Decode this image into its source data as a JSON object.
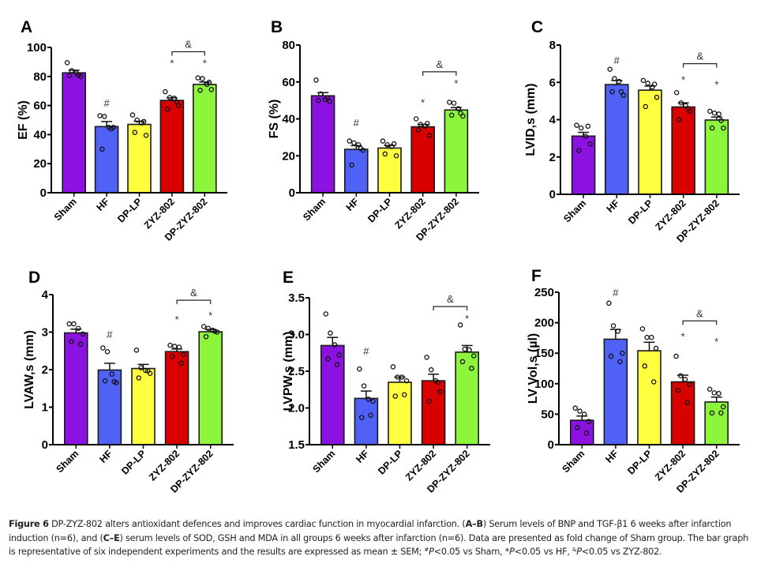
{
  "chart_data": [
    {
      "type": "bar",
      "panel": "A",
      "title": "",
      "xlabel": "",
      "ylabel": "EF (%)",
      "ylim": [
        0,
        100
      ],
      "yticks": [
        0,
        20,
        40,
        60,
        80,
        100
      ],
      "ytick_labels": [
        "0",
        "20",
        "40",
        "60",
        "80",
        "100"
      ],
      "categories": [
        "Sham",
        "HF",
        "DP-LP",
        "ZYZ-802",
        "DP-ZYZ-802"
      ],
      "colors": [
        "#8b12e0",
        "#5062f6",
        "#ffff40",
        "#d90000",
        "#8cf53c"
      ],
      "values": [
        82.5,
        45.5,
        47,
        63.5,
        74.5
      ],
      "sem": [
        1.8,
        3.5,
        2.2,
        1.8,
        1.7
      ],
      "points": [
        [
          89.5,
          84,
          82.5,
          80,
          80.5,
          81
        ],
        [
          53,
          52.5,
          45,
          45,
          30,
          44
        ],
        [
          53.5,
          50,
          48,
          39.5,
          41.5,
          49
        ],
        [
          69.5,
          65.5,
          65,
          60,
          57.5,
          62.5
        ],
        [
          79,
          78.5,
          74.5,
          71,
          70.5,
          76
        ]
      ],
      "annotations": [
        {
          "label": "#",
          "category": "HF",
          "value": 62
        },
        {
          "label": "*",
          "category": "ZYZ-802",
          "value": 89.5
        },
        {
          "label": "*",
          "category": "DP-ZYZ-802",
          "value": 89.5
        }
      ],
      "bracket": {
        "from": "ZYZ-802",
        "to": "DP-ZYZ-802",
        "value": 97,
        "label": "&"
      }
    },
    {
      "type": "bar",
      "panel": "B",
      "title": "",
      "xlabel": "",
      "ylabel": "FS (%)",
      "ylim": [
        0,
        80
      ],
      "yticks": [
        0,
        20,
        40,
        60,
        80
      ],
      "ytick_labels": [
        "0",
        "20",
        "40",
        "60",
        "80"
      ],
      "categories": [
        "Sham",
        "HF",
        "DP-LP",
        "ZYZ-802",
        "DP-ZYZ-802"
      ],
      "colors": [
        "#8b12e0",
        "#5062f6",
        "#ffff40",
        "#d90000",
        "#8cf53c"
      ],
      "values": [
        52.5,
        23.5,
        24.2,
        35.7,
        44.8
      ],
      "sem": [
        1.7,
        2.0,
        1.4,
        1.3,
        1.3
      ],
      "points": [
        [
          61,
          53.5,
          50.5,
          49.5,
          50,
          51.5
        ],
        [
          28,
          27,
          26,
          23,
          15,
          24
        ],
        [
          28,
          26,
          25,
          20,
          21,
          26.5
        ],
        [
          40,
          37,
          36,
          31,
          34,
          37.5
        ],
        [
          49,
          48.5,
          45.5,
          41.5,
          42,
          43
        ]
      ],
      "annotations": [
        {
          "label": "#",
          "category": "HF",
          "value": 38
        },
        {
          "label": "*",
          "category": "ZYZ-802",
          "value": 49
        },
        {
          "label": "*",
          "category": "DP-ZYZ-802",
          "value": 59.5
        }
      ],
      "bracket": {
        "from": "ZYZ-802",
        "to": "DP-ZYZ-802",
        "value": 65.5,
        "label": "&"
      }
    },
    {
      "type": "bar",
      "panel": "C",
      "title": "",
      "xlabel": "",
      "ylabel": "LVID,s (mm)",
      "ylim": [
        0,
        8
      ],
      "yticks": [
        0,
        2,
        4,
        6,
        8
      ],
      "ytick_labels": [
        "0",
        "2",
        "4",
        "6",
        "8"
      ],
      "categories": [
        "Sham",
        "HF",
        "DP-LP",
        "ZYZ-802",
        "DP-ZYZ-802"
      ],
      "colors": [
        "#8b12e0",
        "#5062f6",
        "#ffff40",
        "#d90000",
        "#8cf53c"
      ],
      "values": [
        3.12,
        5.88,
        5.58,
        4.68,
        3.98
      ],
      "sem": [
        0.2,
        0.22,
        0.22,
        0.22,
        0.16
      ],
      "points": [
        [
          3.7,
          3.55,
          3.1,
          2.7,
          2.35,
          3.65
        ],
        [
          6.7,
          6.2,
          6.05,
          5.3,
          5.5,
          5.5
        ],
        [
          6.1,
          5.95,
          5.75,
          5.2,
          4.7,
          5.9
        ],
        [
          5.45,
          4.9,
          4.75,
          4.45,
          4.0,
          4.6
        ],
        [
          4.45,
          4.35,
          4.3,
          3.55,
          3.55,
          3.95
        ]
      ],
      "annotations": [
        {
          "label": "#",
          "category": "HF",
          "value": 7.2
        },
        {
          "label": "*",
          "category": "ZYZ-802",
          "value": 6.15
        },
        {
          "label": "*",
          "category": "DP-ZYZ-802",
          "value": 5.9
        }
      ],
      "bracket": {
        "from": "ZYZ-802",
        "to": "DP-ZYZ-802",
        "value": 7.0,
        "label": "&"
      }
    },
    {
      "type": "bar",
      "panel": "D",
      "title": "",
      "xlabel": "",
      "ylabel": "LVAW,s (mm)",
      "ylim": [
        0,
        4
      ],
      "yticks": [
        0,
        1,
        2,
        3,
        4
      ],
      "ytick_labels": [
        "0",
        "1",
        "2",
        "3",
        "4"
      ],
      "categories": [
        "Sham",
        "HF",
        "DP-LP",
        "ZYZ-802",
        "DP-ZYZ-802"
      ],
      "colors": [
        "#8b12e0",
        "#5062f6",
        "#ffff40",
        "#d90000",
        "#8cf53c"
      ],
      "values": [
        2.98,
        1.99,
        2.03,
        2.48,
        3.01
      ],
      "sem": [
        0.1,
        0.18,
        0.11,
        0.07,
        0.06
      ],
      "points": [
        [
          3.22,
          3.22,
          3.1,
          2.95,
          2.75,
          2.68
        ],
        [
          2.58,
          2.48,
          1.88,
          1.65,
          1.7,
          1.68
        ],
        [
          2.52,
          2.05,
          1.98,
          1.9,
          1.78,
          1.97
        ],
        [
          2.65,
          2.62,
          2.6,
          2.4,
          2.35,
          2.17
        ],
        [
          3.15,
          3.1,
          3.05,
          3.0,
          2.88,
          3.02
        ]
      ],
      "annotations": [
        {
          "label": "#",
          "category": "HF",
          "value": 2.95
        },
        {
          "label": "*",
          "category": "ZYZ-802",
          "value": 3.35
        },
        {
          "label": "*",
          "category": "DP-ZYZ-802",
          "value": 3.45
        }
      ],
      "bracket": {
        "from": "ZYZ-802",
        "to": "DP-ZYZ-802",
        "value": 3.85,
        "label": "&"
      }
    },
    {
      "type": "bar",
      "panel": "E",
      "title": "",
      "xlabel": "",
      "ylabel": "LVPW,s (mm)",
      "ylim": [
        1.5,
        3.5
      ],
      "yticks": [
        1.5,
        2.0,
        2.5,
        3.0,
        3.5
      ],
      "ytick_labels": [
        "1.5",
        "2.0",
        "2.5",
        "3.0",
        "3.5"
      ],
      "categories": [
        "Sham",
        "HF",
        "DP-LP",
        "ZYZ-802",
        "DP-ZYZ-802"
      ],
      "colors": [
        "#8b12e0",
        "#5062f6",
        "#ffff40",
        "#d90000",
        "#8cf53c"
      ],
      "values": [
        2.85,
        2.13,
        2.35,
        2.37,
        2.76
      ],
      "sem": [
        0.11,
        0.1,
        0.07,
        0.09,
        0.09
      ],
      "points": [
        [
          3.28,
          3.02,
          2.86,
          2.72,
          2.67,
          2.59
        ],
        [
          2.53,
          2.3,
          2.12,
          2.09,
          1.87,
          1.9
        ],
        [
          2.56,
          2.42,
          2.42,
          2.37,
          2.16,
          2.18
        ],
        [
          2.69,
          2.52,
          2.37,
          2.22,
          2.09,
          2.35
        ],
        [
          3.13,
          2.8,
          2.79,
          2.71,
          2.63,
          2.54
        ]
      ],
      "annotations": [
        {
          "label": "#",
          "category": "HF",
          "value": 2.78
        },
        {
          "label": "*",
          "category": "DP-ZYZ-802",
          "value": 3.22
        }
      ],
      "bracket": {
        "from": "ZYZ-802",
        "to": "DP-ZYZ-802",
        "value": 3.38,
        "label": "&"
      }
    },
    {
      "type": "bar",
      "panel": "F",
      "title": "",
      "xlabel": "",
      "ylabel": "LV Vol,s (µl)",
      "ylim": [
        0,
        250
      ],
      "yticks": [
        0,
        50,
        100,
        150,
        200,
        250
      ],
      "ytick_labels": [
        "0",
        "50",
        "100",
        "150",
        "200",
        "250"
      ],
      "categories": [
        "Sham",
        "HF",
        "DP-LP",
        "ZYZ-802",
        "DP-ZYZ-802"
      ],
      "colors": [
        "#8b12e0",
        "#5062f6",
        "#ffff40",
        "#d90000",
        "#8cf53c"
      ],
      "values": [
        40,
        173,
        154,
        103,
        70
      ],
      "sem": [
        7,
        16,
        14,
        11,
        8
      ],
      "points": [
        [
          60,
          55,
          50,
          38,
          28,
          19
        ],
        [
          232,
          195,
          186,
          150,
          145,
          136
        ],
        [
          190,
          176,
          176,
          158,
          129,
          103
        ],
        [
          145,
          113,
          107,
          99,
          89,
          69
        ],
        [
          91,
          85,
          84,
          62,
          52,
          52
        ]
      ],
      "annotations": [
        {
          "label": "#",
          "category": "HF",
          "value": 250
        },
        {
          "label": "*",
          "category": "ZYZ-802",
          "value": 178
        },
        {
          "label": "*",
          "category": "DP-ZYZ-802",
          "value": 170
        }
      ],
      "bracket": {
        "from": "ZYZ-802",
        "to": "DP-ZYZ-802",
        "value": 203,
        "label": "&"
      }
    }
  ],
  "caption": {
    "figure_label": "Figure 6",
    "part1": " DP-ZYZ-802 alters antioxidant defences and improves cardiac function in myocardial infarction. (",
    "ref_ab": "A–B",
    "part2": ") Serum levels of BNP and TGF-β1 6 weeks after infarction induction (n=6), and (",
    "ref_ce": "C–E",
    "part3": ") serum levels of SOD, GSH and MDA in all groups 6 weeks after infarction (n=6). Data are presented as fold change of Sham group. The bar graph is representative of six independent experiments and the results are expressed as mean ± SEM; ",
    "sup_hash": "#",
    "p1": "P",
    "part4": "<0.05 vs Sham, *",
    "p2": "P",
    "part5": "<0.05 vs HF, ",
    "sup_amp": "&",
    "p3": "P",
    "part6": "<0.05 vs ZYZ-802."
  }
}
